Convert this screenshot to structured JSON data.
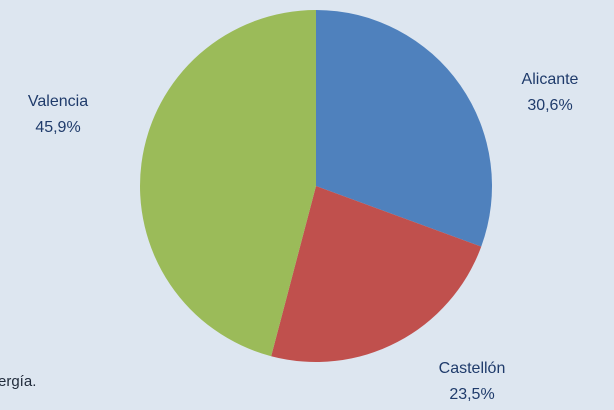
{
  "chart_data": {
    "type": "pie",
    "title": "",
    "slices": [
      {
        "name": "Alicante",
        "value": 30.6,
        "label": "30,6%",
        "color": "#4f81bd"
      },
      {
        "name": "Castellón",
        "value": 23.5,
        "label": "23,5%",
        "color": "#c0504d"
      },
      {
        "name": "Valencia",
        "value": 45.9,
        "label": "45,9%",
        "color": "#9bbb59"
      }
    ],
    "start_angle_deg": 0,
    "direction": "clockwise",
    "legend": "none"
  },
  "footnote": {
    "text": "ergía."
  }
}
